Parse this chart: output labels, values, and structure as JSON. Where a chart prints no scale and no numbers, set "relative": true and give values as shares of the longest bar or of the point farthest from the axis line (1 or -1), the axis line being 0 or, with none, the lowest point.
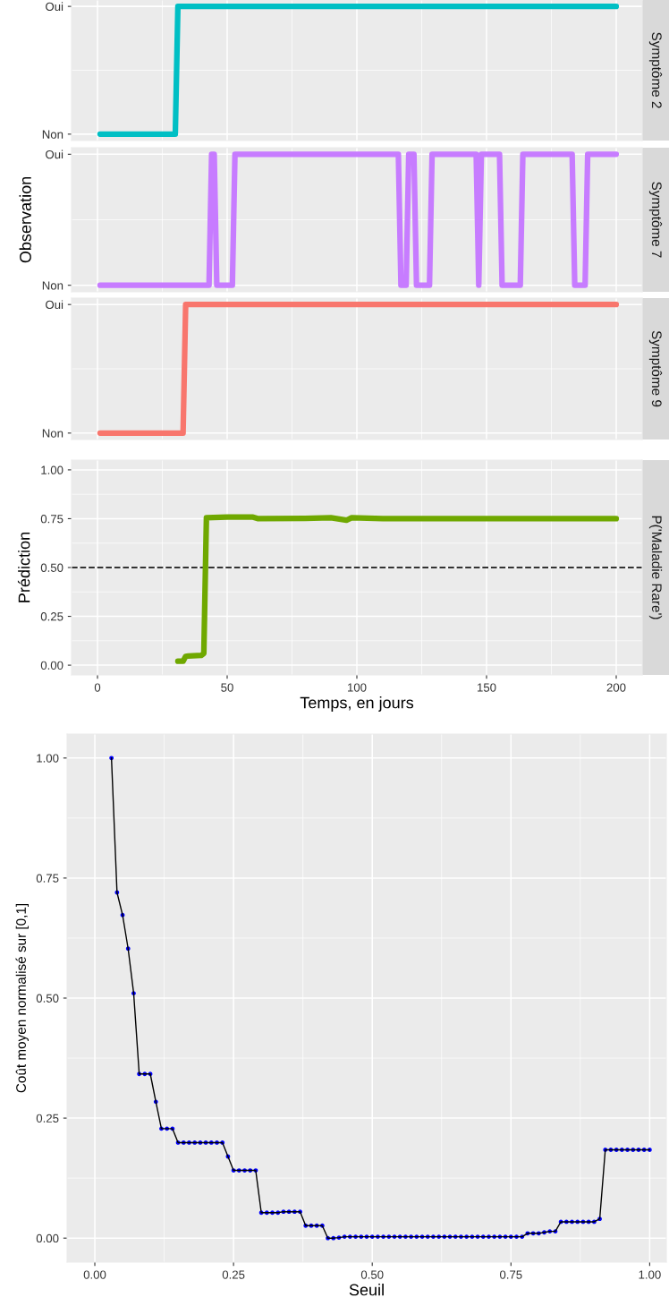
{
  "chart_data": [
    {
      "type": "line",
      "y2label": "Symptôme 2",
      "x": [
        1,
        30,
        31,
        200
      ],
      "relative": true,
      "annotations": [
        "Non",
        "Oui"
      ],
      "series": [
        {
          "color": "#00bfc4",
          "values": [
            0,
            0,
            1,
            1
          ]
        }
      ],
      "xlim": [
        -10,
        210
      ],
      "xticks": [
        0,
        50,
        100,
        150,
        200
      ],
      "tick_labels": "y",
      "grid": true
    },
    {
      "type": "line",
      "y2label": "Symptôme 7",
      "ylabel": "Observation",
      "x": [
        1,
        43,
        44,
        45,
        46,
        52,
        53,
        116,
        117,
        119,
        120,
        122,
        123,
        128,
        129,
        146,
        147,
        148,
        155,
        156,
        163,
        164,
        183,
        184,
        188,
        189,
        200
      ],
      "relative": true,
      "annotations": [
        "Non",
        "Oui"
      ],
      "series": [
        {
          "color": "#c77cff",
          "values": [
            0,
            0,
            1,
            1,
            0,
            0,
            1,
            1,
            0,
            0,
            1,
            1,
            0,
            0,
            1,
            1,
            0,
            1,
            1,
            0,
            0,
            1,
            1,
            0,
            0,
            1,
            1
          ]
        }
      ],
      "xlim": [
        -10,
        210
      ],
      "xticks": [
        0,
        50,
        100,
        150,
        200
      ],
      "tick_labels": "y",
      "grid": true
    },
    {
      "type": "line",
      "y2label": "Symptôme 9",
      "x": [
        1,
        33,
        34,
        200
      ],
      "relative": true,
      "annotations": [
        "Non",
        "Oui"
      ],
      "series": [
        {
          "color": "#f8766d",
          "values": [
            0,
            0,
            1,
            1
          ]
        }
      ],
      "xlim": [
        -10,
        210
      ],
      "xticks": [
        0,
        50,
        100,
        150,
        200
      ],
      "tick_labels": "y",
      "grid": true
    },
    {
      "type": "line",
      "y2label": "P('Maladie Rare')",
      "ylabel": "Prédiction",
      "xlabel": "Temps, en jours",
      "x": [
        31,
        33,
        34,
        35,
        40,
        41,
        42,
        50,
        60,
        62,
        80,
        90,
        96,
        98,
        110,
        200
      ],
      "series": [
        {
          "color": "#6fa800",
          "values": [
            0.02,
            0.02,
            0.045,
            0.047,
            0.05,
            0.06,
            0.755,
            0.758,
            0.758,
            0.75,
            0.752,
            0.755,
            0.742,
            0.755,
            0.75,
            0.75
          ]
        }
      ],
      "xlim": [
        -10,
        210
      ],
      "xticks": [
        0,
        50,
        100,
        150,
        200
      ],
      "ylim": [
        -0.05,
        1.05
      ],
      "yticks": [
        {
          "value": 0,
          "label": "0.00"
        },
        {
          "value": 0.25,
          "label": "0.25"
        },
        {
          "value": 0.5,
          "label": "0.50"
        },
        {
          "value": 0.75,
          "label": "0.75"
        },
        {
          "value": 1,
          "label": "1.00"
        }
      ],
      "ref_lines": [
        {
          "axis": "y",
          "value": 0.5,
          "color": "#333333",
          "line_style": "dashed"
        }
      ],
      "grid": true
    },
    {
      "type": "line",
      "ylabel": "Coût moyen normalisé sur [0,1]",
      "xlabel": "Seuil",
      "x": [
        0.03,
        0.04,
        0.05,
        0.06,
        0.07,
        0.08,
        0.09,
        0.1,
        0.11,
        0.12,
        0.13,
        0.14,
        0.15,
        0.16,
        0.17,
        0.18,
        0.19,
        0.2,
        0.21,
        0.22,
        0.23,
        0.24,
        0.25,
        0.26,
        0.27,
        0.28,
        0.29,
        0.3,
        0.31,
        0.32,
        0.33,
        0.34,
        0.35,
        0.36,
        0.37,
        0.38,
        0.39,
        0.4,
        0.41,
        0.42,
        0.43,
        0.44,
        0.45,
        0.46,
        0.47,
        0.48,
        0.49,
        0.5,
        0.51,
        0.52,
        0.53,
        0.54,
        0.55,
        0.56,
        0.57,
        0.58,
        0.59,
        0.6,
        0.61,
        0.62,
        0.63,
        0.64,
        0.65,
        0.66,
        0.67,
        0.68,
        0.69,
        0.7,
        0.71,
        0.72,
        0.73,
        0.74,
        0.75,
        0.76,
        0.77,
        0.78,
        0.79,
        0.8,
        0.81,
        0.82,
        0.83,
        0.84,
        0.85,
        0.86,
        0.87,
        0.88,
        0.89,
        0.9,
        0.91,
        0.92,
        0.93,
        0.94,
        0.95,
        0.96,
        0.97,
        0.98,
        0.99,
        1.0
      ],
      "series": [
        {
          "type": "line",
          "color": "#000000",
          "marker": "none",
          "values": [
            1.0,
            0.72,
            0.673,
            0.603,
            0.51,
            0.342,
            0.342,
            0.342,
            0.284,
            0.228,
            0.228,
            0.228,
            0.199,
            0.199,
            0.199,
            0.199,
            0.199,
            0.199,
            0.199,
            0.199,
            0.199,
            0.17,
            0.141,
            0.141,
            0.141,
            0.141,
            0.141,
            0.053,
            0.053,
            0.053,
            0.053,
            0.055,
            0.055,
            0.055,
            0.055,
            0.026,
            0.026,
            0.026,
            0.026,
            0.0,
            0.0,
            0.001,
            0.003,
            0.003,
            0.003,
            0.003,
            0.003,
            0.003,
            0.003,
            0.003,
            0.003,
            0.003,
            0.003,
            0.003,
            0.003,
            0.003,
            0.003,
            0.003,
            0.003,
            0.003,
            0.003,
            0.003,
            0.003,
            0.003,
            0.003,
            0.003,
            0.003,
            0.003,
            0.003,
            0.003,
            0.003,
            0.003,
            0.003,
            0.003,
            0.003,
            0.01,
            0.01,
            0.01,
            0.012,
            0.014,
            0.014,
            0.034,
            0.034,
            0.034,
            0.034,
            0.034,
            0.034,
            0.034,
            0.04,
            0.184,
            0.184,
            0.184,
            0.184,
            0.184,
            0.184,
            0.184,
            0.184,
            0.184
          ]
        },
        {
          "type": "scatter",
          "color": "#0000ff",
          "marker": "circle",
          "values": [
            1.0,
            0.72,
            0.673,
            0.603,
            0.51,
            0.342,
            0.342,
            0.342,
            0.284,
            0.228,
            0.228,
            0.228,
            0.199,
            0.199,
            0.199,
            0.199,
            0.199,
            0.199,
            0.199,
            0.199,
            0.199,
            0.17,
            0.141,
            0.141,
            0.141,
            0.141,
            0.141,
            0.053,
            0.053,
            0.053,
            0.053,
            0.055,
            0.055,
            0.055,
            0.055,
            0.026,
            0.026,
            0.026,
            0.026,
            0.0,
            0.0,
            0.001,
            0.003,
            0.003,
            0.003,
            0.003,
            0.003,
            0.003,
            0.003,
            0.003,
            0.003,
            0.003,
            0.003,
            0.003,
            0.003,
            0.003,
            0.003,
            0.003,
            0.003,
            0.003,
            0.003,
            0.003,
            0.003,
            0.003,
            0.003,
            0.003,
            0.003,
            0.003,
            0.003,
            0.003,
            0.003,
            0.003,
            0.003,
            0.003,
            0.003,
            0.01,
            0.01,
            0.01,
            0.012,
            0.014,
            0.014,
            0.034,
            0.034,
            0.034,
            0.034,
            0.034,
            0.034,
            0.034,
            0.04,
            0.184,
            0.184,
            0.184,
            0.184,
            0.184,
            0.184,
            0.184,
            0.184,
            0.184
          ]
        }
      ],
      "xlim": [
        -0.05,
        1.03
      ],
      "xticks": [
        {
          "value": 0,
          "label": "0.00"
        },
        {
          "value": 0.25,
          "label": "0.25"
        },
        {
          "value": 0.5,
          "label": "0.50"
        },
        {
          "value": 0.75,
          "label": "0.75"
        },
        {
          "value": 1,
          "label": "1.00"
        }
      ],
      "ylim": [
        -0.05,
        1.05
      ],
      "yticks": [
        {
          "value": 0,
          "label": "0.00"
        },
        {
          "value": 0.25,
          "label": "0.25"
        },
        {
          "value": 0.5,
          "label": "0.50"
        },
        {
          "value": 0.75,
          "label": "0.75"
        },
        {
          "value": 1,
          "label": "1.00"
        }
      ],
      "grid": true
    }
  ]
}
